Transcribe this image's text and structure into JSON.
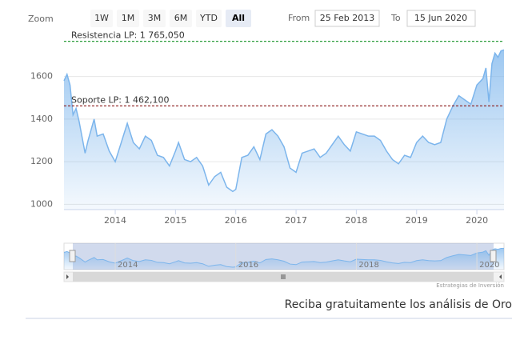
{
  "range_selector": {
    "zoom_label": "Zoom",
    "buttons": [
      "1W",
      "1M",
      "3M",
      "6M",
      "YTD",
      "All"
    ],
    "selected": 5,
    "from_label": "From",
    "from_value": "25 Feb 2013",
    "to_label": "To",
    "to_value": "15 Jun 2020"
  },
  "chart_data": {
    "type": "area",
    "color": "#7cb5ec",
    "x": [
      2013.15,
      2013.2,
      2013.25,
      2013.3,
      2013.35,
      2013.4,
      2013.5,
      2013.55,
      2013.65,
      2013.7,
      2013.8,
      2013.9,
      2014.0,
      2014.1,
      2014.2,
      2014.3,
      2014.4,
      2014.5,
      2014.6,
      2014.7,
      2014.8,
      2014.9,
      2015.0,
      2015.05,
      2015.15,
      2015.25,
      2015.35,
      2015.45,
      2015.55,
      2015.65,
      2015.75,
      2015.85,
      2015.95,
      2016.0,
      2016.1,
      2016.2,
      2016.3,
      2016.4,
      2016.5,
      2016.6,
      2016.7,
      2016.8,
      2016.9,
      2017.0,
      2017.1,
      2017.2,
      2017.3,
      2017.4,
      2017.5,
      2017.6,
      2017.7,
      2017.8,
      2017.9,
      2018.0,
      2018.1,
      2018.2,
      2018.3,
      2018.4,
      2018.5,
      2018.6,
      2018.7,
      2018.8,
      2018.9,
      2019.0,
      2019.1,
      2019.2,
      2019.3,
      2019.4,
      2019.5,
      2019.6,
      2019.7,
      2019.8,
      2019.9,
      2020.0,
      2020.1,
      2020.15,
      2020.2,
      2020.25,
      2020.3,
      2020.35,
      2020.4,
      2020.45
    ],
    "values": [
      1580,
      1610,
      1560,
      1420,
      1450,
      1390,
      1240,
      1300,
      1400,
      1320,
      1330,
      1250,
      1200,
      1290,
      1380,
      1290,
      1260,
      1320,
      1300,
      1230,
      1220,
      1180,
      1250,
      1290,
      1210,
      1200,
      1220,
      1180,
      1090,
      1130,
      1150,
      1080,
      1060,
      1070,
      1220,
      1230,
      1270,
      1210,
      1330,
      1350,
      1320,
      1270,
      1170,
      1150,
      1240,
      1250,
      1260,
      1220,
      1240,
      1280,
      1320,
      1280,
      1250,
      1340,
      1330,
      1320,
      1320,
      1300,
      1250,
      1210,
      1190,
      1230,
      1220,
      1290,
      1320,
      1290,
      1280,
      1290,
      1400,
      1460,
      1510,
      1490,
      1470,
      1560,
      1590,
      1640,
      1480,
      1660,
      1710,
      1690,
      1720,
      1725
    ],
    "xlim": [
      2013.15,
      2020.45
    ],
    "xticks": [
      2014,
      2015,
      2016,
      2017,
      2018,
      2019,
      2020
    ],
    "ylim": [
      975,
      1790
    ],
    "yticks": [
      1000,
      1200,
      1400,
      1600
    ],
    "grid": true,
    "plot_lines": [
      {
        "label": "Resistencia LP: 1 765,050",
        "value": 1765.05,
        "color": "#2e9e3e"
      },
      {
        "label": "Soporte LP: 1 462,100",
        "value": 1462.1,
        "color": "#8b1a1a"
      }
    ],
    "navigator_xticks": [
      2014,
      2016,
      2018,
      2020
    ],
    "credits": "Estrategias de Inversión"
  },
  "footer_text": "Reciba gratuitamente los análisis de Oro"
}
